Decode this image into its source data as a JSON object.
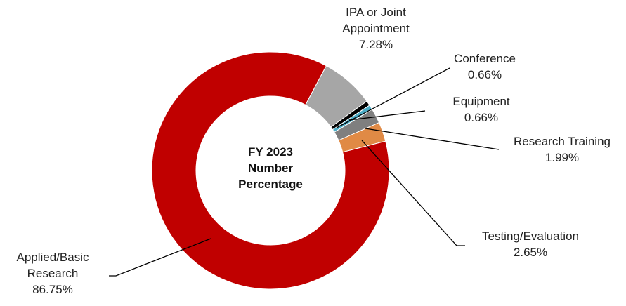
{
  "chart_data": {
    "type": "donut",
    "title": "FY 2023 Number Percentage",
    "categories": [
      "IPA or Joint Appointment",
      "Conference",
      "Equipment",
      "Research Training",
      "Testing/Evaluation",
      "Applied/Basic Research"
    ],
    "values": [
      7.28,
      0.66,
      0.66,
      1.99,
      2.65,
      86.75
    ],
    "value_labels": [
      "7.28%",
      "0.66%",
      "0.66%",
      "1.99%",
      "2.65%",
      "86.75%"
    ],
    "colors": [
      "#a6a6a6",
      "#000000",
      "#4bacc6",
      "#7f7f7f",
      "#e08a45",
      "#c00000"
    ]
  }
}
